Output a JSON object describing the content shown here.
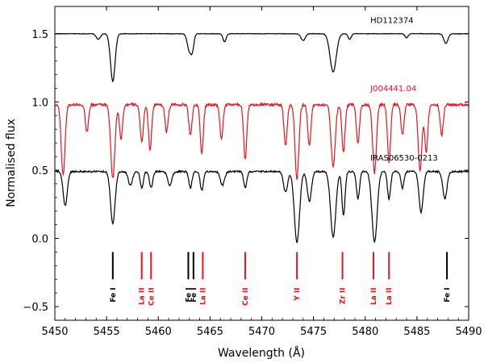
{
  "chart_data": {
    "type": "line",
    "title": "",
    "xlabel": "Wavelength (Å)",
    "ylabel": "Normalised flux",
    "xlim": [
      5450,
      5490
    ],
    "ylim": [
      -0.6,
      1.7
    ],
    "xticks": [
      5450,
      5455,
      5460,
      5465,
      5470,
      5475,
      5480,
      5485,
      5490
    ],
    "xtick_labels": [
      "5450",
      "5455",
      "5460",
      "5465",
      "5470",
      "5475",
      "5480",
      "5485",
      "5490"
    ],
    "yticks": [
      -0.5,
      0.0,
      0.5,
      1.0,
      1.5
    ],
    "ytick_labels": [
      "−0.5",
      "0.0",
      "0.5",
      "1.0",
      "1.5"
    ],
    "grid": false,
    "series": [
      {
        "name": "HD112374",
        "color": "#000000",
        "baseline": 1.5,
        "noise": 0.004,
        "absorptions": [
          {
            "center": 5455.6,
            "depth": 0.35,
            "width": 0.22
          },
          {
            "center": 5454.2,
            "depth": 0.04,
            "width": 0.2
          },
          {
            "center": 5463.0,
            "depth": 0.12,
            "width": 0.2
          },
          {
            "center": 5463.3,
            "depth": 0.1,
            "width": 0.15
          },
          {
            "center": 5466.4,
            "depth": 0.06,
            "width": 0.15
          },
          {
            "center": 5474.0,
            "depth": 0.05,
            "width": 0.2
          },
          {
            "center": 5476.9,
            "depth": 0.28,
            "width": 0.3
          },
          {
            "center": 5478.5,
            "depth": 0.04,
            "width": 0.15
          },
          {
            "center": 5484.0,
            "depth": 0.03,
            "width": 0.15
          },
          {
            "center": 5487.8,
            "depth": 0.07,
            "width": 0.2
          }
        ]
      },
      {
        "name": "J004441.04",
        "color": "#e8141e",
        "baseline": 0.98,
        "noise": 0.02,
        "absorptions": [
          {
            "center": 5450.8,
            "depth": 0.52,
            "width": 0.18
          },
          {
            "center": 5453.1,
            "depth": 0.2,
            "width": 0.15
          },
          {
            "center": 5455.6,
            "depth": 0.54,
            "width": 0.2
          },
          {
            "center": 5456.4,
            "depth": 0.25,
            "width": 0.15
          },
          {
            "center": 5458.4,
            "depth": 0.28,
            "width": 0.15
          },
          {
            "center": 5459.2,
            "depth": 0.33,
            "width": 0.15
          },
          {
            "center": 5460.8,
            "depth": 0.2,
            "width": 0.15
          },
          {
            "center": 5463.1,
            "depth": 0.22,
            "width": 0.15
          },
          {
            "center": 5464.2,
            "depth": 0.36,
            "width": 0.15
          },
          {
            "center": 5466.1,
            "depth": 0.25,
            "width": 0.15
          },
          {
            "center": 5468.4,
            "depth": 0.4,
            "width": 0.15
          },
          {
            "center": 5472.3,
            "depth": 0.3,
            "width": 0.15
          },
          {
            "center": 5473.4,
            "depth": 0.55,
            "width": 0.18
          },
          {
            "center": 5474.6,
            "depth": 0.3,
            "width": 0.15
          },
          {
            "center": 5476.9,
            "depth": 0.45,
            "width": 0.2
          },
          {
            "center": 5477.9,
            "depth": 0.35,
            "width": 0.15
          },
          {
            "center": 5479.3,
            "depth": 0.28,
            "width": 0.15
          },
          {
            "center": 5480.9,
            "depth": 0.5,
            "width": 0.18
          },
          {
            "center": 5482.3,
            "depth": 0.42,
            "width": 0.15
          },
          {
            "center": 5483.6,
            "depth": 0.22,
            "width": 0.15
          },
          {
            "center": 5485.3,
            "depth": 0.48,
            "width": 0.18
          },
          {
            "center": 5485.9,
            "depth": 0.35,
            "width": 0.15
          },
          {
            "center": 5487.4,
            "depth": 0.22,
            "width": 0.15
          }
        ]
      },
      {
        "name": "IRAS06530-0213",
        "color": "#000000",
        "baseline": 0.49,
        "noise": 0.012,
        "absorptions": [
          {
            "center": 5451.0,
            "depth": 0.25,
            "width": 0.2
          },
          {
            "center": 5455.6,
            "depth": 0.38,
            "width": 0.22
          },
          {
            "center": 5457.3,
            "depth": 0.1,
            "width": 0.2
          },
          {
            "center": 5458.4,
            "depth": 0.12,
            "width": 0.15
          },
          {
            "center": 5459.3,
            "depth": 0.12,
            "width": 0.15
          },
          {
            "center": 5461.1,
            "depth": 0.1,
            "width": 0.2
          },
          {
            "center": 5463.1,
            "depth": 0.12,
            "width": 0.15
          },
          {
            "center": 5464.2,
            "depth": 0.14,
            "width": 0.15
          },
          {
            "center": 5466.2,
            "depth": 0.1,
            "width": 0.2
          },
          {
            "center": 5468.4,
            "depth": 0.12,
            "width": 0.15
          },
          {
            "center": 5472.3,
            "depth": 0.15,
            "width": 0.2
          },
          {
            "center": 5473.4,
            "depth": 0.52,
            "width": 0.25
          },
          {
            "center": 5474.6,
            "depth": 0.22,
            "width": 0.2
          },
          {
            "center": 5476.9,
            "depth": 0.48,
            "width": 0.25
          },
          {
            "center": 5477.9,
            "depth": 0.32,
            "width": 0.15
          },
          {
            "center": 5479.3,
            "depth": 0.2,
            "width": 0.15
          },
          {
            "center": 5480.9,
            "depth": 0.52,
            "width": 0.25
          },
          {
            "center": 5482.3,
            "depth": 0.2,
            "width": 0.15
          },
          {
            "center": 5483.6,
            "depth": 0.12,
            "width": 0.15
          },
          {
            "center": 5485.4,
            "depth": 0.3,
            "width": 0.2
          },
          {
            "center": 5487.7,
            "depth": 0.2,
            "width": 0.2
          }
        ]
      }
    ],
    "series_labels": [
      {
        "text": "HD112374",
        "x": 5480.5,
        "y": 1.58,
        "color": "#000000"
      },
      {
        "text": "J004441.04",
        "x": 5480.5,
        "y": 1.08,
        "color": "#e8141e"
      },
      {
        "text": "IRAS06530-0213",
        "x": 5480.5,
        "y": 0.57,
        "color": "#000000"
      }
    ],
    "line_identifications": [
      {
        "wavelength": 5455.6,
        "element": "Fe I",
        "color": "#000000"
      },
      {
        "wavelength": 5458.4,
        "element": "La II",
        "color": "#e8141e"
      },
      {
        "wavelength": 5459.3,
        "element": "Ce II",
        "color": "#e8141e"
      },
      {
        "wavelength": 5462.9,
        "element": "Fe I",
        "color": "#000000"
      },
      {
        "wavelength": 5463.4,
        "element": "Fe I",
        "color": "#000000"
      },
      {
        "wavelength": 5464.3,
        "element": "La II",
        "color": "#e8141e"
      },
      {
        "wavelength": 5468.4,
        "element": "Ce II",
        "color": "#e8141e"
      },
      {
        "wavelength": 5473.4,
        "element": "Y II",
        "color": "#e8141e"
      },
      {
        "wavelength": 5477.8,
        "element": "Zr II",
        "color": "#e8141e"
      },
      {
        "wavelength": 5480.8,
        "element": "La II",
        "color": "#e8141e"
      },
      {
        "wavelength": 5482.3,
        "element": "La II",
        "color": "#e8141e"
      },
      {
        "wavelength": 5487.9,
        "element": "Fe I",
        "color": "#000000"
      }
    ],
    "line_marker_range": [
      -0.1,
      -0.3
    ]
  }
}
